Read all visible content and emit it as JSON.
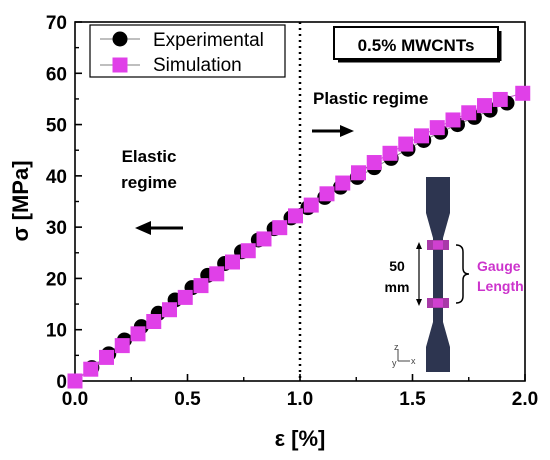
{
  "chart_data": {
    "type": "scatter",
    "title": "",
    "xlabel": "ε [%]",
    "ylabel": "σ [MPa]",
    "xlim": [
      0.0,
      2.0
    ],
    "ylim": [
      0,
      70
    ],
    "x_ticks": [
      "0.0",
      "0.5",
      "1.0",
      "1.5",
      "2.0"
    ],
    "y_ticks": [
      "0",
      "10",
      "20",
      "30",
      "40",
      "50",
      "60",
      "70"
    ],
    "grid": false,
    "legend_position": "top-left",
    "series": [
      {
        "name": "Experimental",
        "marker": "circle",
        "color": "#000000",
        "x": [
          0.0,
          0.075,
          0.15,
          0.22,
          0.295,
          0.37,
          0.445,
          0.52,
          0.59,
          0.665,
          0.74,
          0.815,
          0.885,
          0.96,
          1.035,
          1.11,
          1.18,
          1.255,
          1.33,
          1.405,
          1.48,
          1.55,
          1.625,
          1.7,
          1.775,
          1.845,
          1.92
        ],
        "y": [
          0.0,
          2.6,
          5.3,
          8.0,
          10.6,
          13.2,
          15.8,
          18.2,
          20.6,
          22.9,
          25.2,
          27.5,
          29.7,
          31.8,
          33.8,
          35.8,
          37.8,
          39.7,
          41.6,
          43.4,
          45.2,
          46.9,
          48.5,
          50.0,
          51.4,
          52.8,
          54.2
        ]
      },
      {
        "name": "Simulation",
        "marker": "square",
        "color": "#e040e8",
        "x": [
          0.0,
          0.07,
          0.14,
          0.21,
          0.28,
          0.35,
          0.42,
          0.49,
          0.56,
          0.63,
          0.7,
          0.77,
          0.84,
          0.91,
          0.98,
          1.05,
          1.12,
          1.19,
          1.26,
          1.33,
          1.4,
          1.47,
          1.54,
          1.61,
          1.68,
          1.75,
          1.82,
          1.89,
          1.99
        ],
        "y": [
          0.0,
          2.3,
          4.6,
          6.9,
          9.2,
          11.6,
          13.9,
          16.3,
          18.6,
          20.9,
          23.2,
          25.4,
          27.7,
          29.9,
          32.2,
          34.3,
          36.5,
          38.6,
          40.6,
          42.6,
          44.4,
          46.2,
          47.8,
          49.4,
          50.9,
          52.3,
          53.7,
          54.9,
          56.1
        ]
      }
    ],
    "annotations": {
      "badge": "0.5% MWCNTs",
      "elastic_line1": "Elastic",
      "elastic_line2": "regime",
      "plastic": "Plastic regime",
      "divider_x": 1.0,
      "specimen_length_value": "50",
      "specimen_length_unit": "mm",
      "gauge_line1": "Gauge",
      "gauge_line2": "Length",
      "axis_triad_z": "z",
      "axis_triad_x": "x",
      "axis_triad_y": "y"
    },
    "colors": {
      "experimental": "#000000",
      "simulation": "#e040e8",
      "specimen": "#2d3550",
      "gauge_text": "#cc33cc"
    }
  }
}
